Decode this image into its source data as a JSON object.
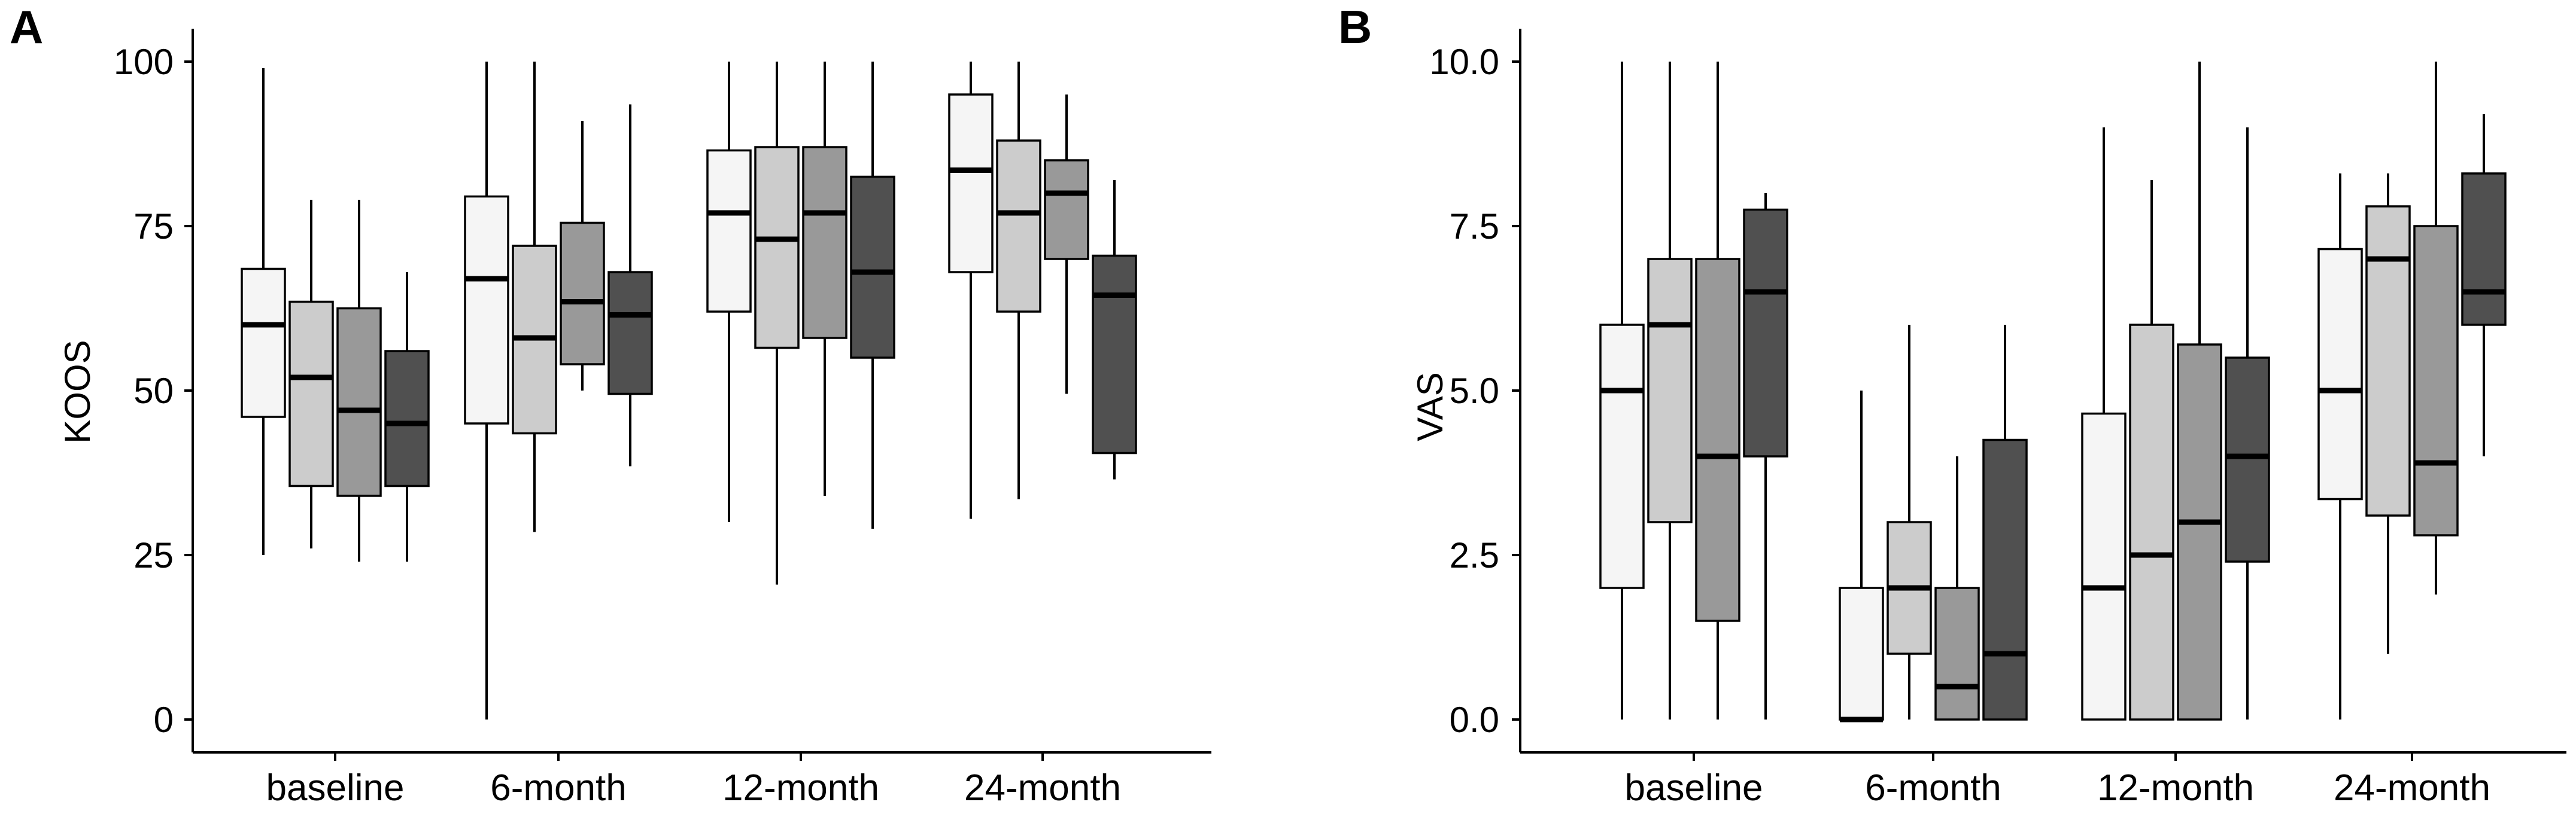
{
  "chart_data": [
    {
      "type": "boxplot",
      "panel_label": "A",
      "ylabel": "KOOS",
      "xlabel": "",
      "ylim": [
        -5,
        105
      ],
      "yticks": [
        0,
        25,
        50,
        75,
        100
      ],
      "ytick_labels": [
        "0",
        "25",
        "50",
        "75",
        "100"
      ],
      "categories": [
        "baseline",
        "6-month",
        "12-month",
        "24-month"
      ],
      "group_colors": [
        "#f5f5f5",
        "#cccccc",
        "#999999",
        "#505050"
      ],
      "groups": [
        [
          {
            "min": 25,
            "q1": 46,
            "median": 60,
            "q3": 68.5,
            "max": 99
          },
          {
            "min": 26,
            "q1": 35.5,
            "median": 52,
            "q3": 63.5,
            "max": 79
          },
          {
            "min": 24,
            "q1": 34,
            "median": 47,
            "q3": 62.5,
            "max": 79
          },
          {
            "min": 24,
            "q1": 35.5,
            "median": 45,
            "q3": 56,
            "max": 68
          }
        ],
        [
          {
            "min": 0,
            "q1": 45,
            "median": 67,
            "q3": 79.5,
            "max": 100
          },
          {
            "min": 28.5,
            "q1": 43.5,
            "median": 58,
            "q3": 72,
            "max": 100
          },
          {
            "min": 50,
            "q1": 54,
            "median": 63.5,
            "q3": 75.5,
            "max": 91
          },
          {
            "min": 38.5,
            "q1": 49.5,
            "median": 61.5,
            "q3": 68,
            "max": 93.5
          }
        ],
        [
          {
            "min": 30,
            "q1": 62,
            "median": 77,
            "q3": 86.5,
            "max": 100
          },
          {
            "min": 20.5,
            "q1": 56.5,
            "median": 73,
            "q3": 87,
            "max": 100
          },
          {
            "min": 34,
            "q1": 58,
            "median": 77,
            "q3": 87,
            "max": 100
          },
          {
            "min": 29,
            "q1": 55,
            "median": 68,
            "q3": 82.5,
            "max": 100
          }
        ],
        [
          {
            "min": 30.5,
            "q1": 68,
            "median": 83.5,
            "q3": 95,
            "max": 100
          },
          {
            "min": 33.5,
            "q1": 62,
            "median": 77,
            "q3": 88,
            "max": 100
          },
          {
            "min": 49.5,
            "q1": 70,
            "median": 80,
            "q3": 85,
            "max": 95
          },
          {
            "min": 36.5,
            "q1": 40.5,
            "median": 64.5,
            "q3": 70.5,
            "max": 82
          }
        ]
      ]
    },
    {
      "type": "boxplot",
      "panel_label": "B",
      "ylabel": "VAS",
      "xlabel": "",
      "ylim": [
        -0.5,
        10.5
      ],
      "yticks": [
        0,
        2.5,
        5,
        7.5,
        10
      ],
      "ytick_labels": [
        "0.0",
        "2.5",
        "5.0",
        "7.5",
        "10.0"
      ],
      "categories": [
        "baseline",
        "6-month",
        "12-month",
        "24-month"
      ],
      "group_colors": [
        "#f5f5f5",
        "#cccccc",
        "#999999",
        "#505050"
      ],
      "groups": [
        [
          {
            "min": 0,
            "q1": 2,
            "median": 5,
            "q3": 6,
            "max": 10
          },
          {
            "min": 0,
            "q1": 3,
            "median": 6,
            "q3": 7,
            "max": 10
          },
          {
            "min": 0,
            "q1": 1.5,
            "median": 4,
            "q3": 7,
            "max": 10
          },
          {
            "min": 0,
            "q1": 4,
            "median": 6.5,
            "q3": 7.75,
            "max": 8
          }
        ],
        [
          {
            "min": 0,
            "q1": 0,
            "median": 0,
            "q3": 2,
            "max": 5
          },
          {
            "min": 0,
            "q1": 1,
            "median": 2,
            "q3": 3,
            "max": 6
          },
          {
            "min": 0,
            "q1": 0,
            "median": 0.5,
            "q3": 2,
            "max": 4
          },
          {
            "min": 0,
            "q1": 0,
            "median": 1,
            "q3": 4.25,
            "max": 6
          }
        ],
        [
          {
            "min": 0,
            "q1": 0,
            "median": 2,
            "q3": 4.65,
            "max": 9
          },
          {
            "min": 0,
            "q1": 0,
            "median": 2.5,
            "q3": 6,
            "max": 8.2
          },
          {
            "min": 0,
            "q1": 0,
            "median": 3,
            "q3": 5.7,
            "max": 10
          },
          {
            "min": 0,
            "q1": 2.4,
            "median": 4,
            "q3": 5.5,
            "max": 9
          }
        ],
        [
          {
            "min": 0,
            "q1": 3.35,
            "median": 5,
            "q3": 7.15,
            "max": 8.3
          },
          {
            "min": 1,
            "q1": 3.1,
            "median": 7,
            "q3": 7.8,
            "max": 8.3
          },
          {
            "min": 1.9,
            "q1": 2.8,
            "median": 3.9,
            "q3": 7.5,
            "max": 10
          },
          {
            "min": 4,
            "q1": 6,
            "median": 6.5,
            "q3": 8.3,
            "max": 9.2
          }
        ]
      ]
    }
  ]
}
